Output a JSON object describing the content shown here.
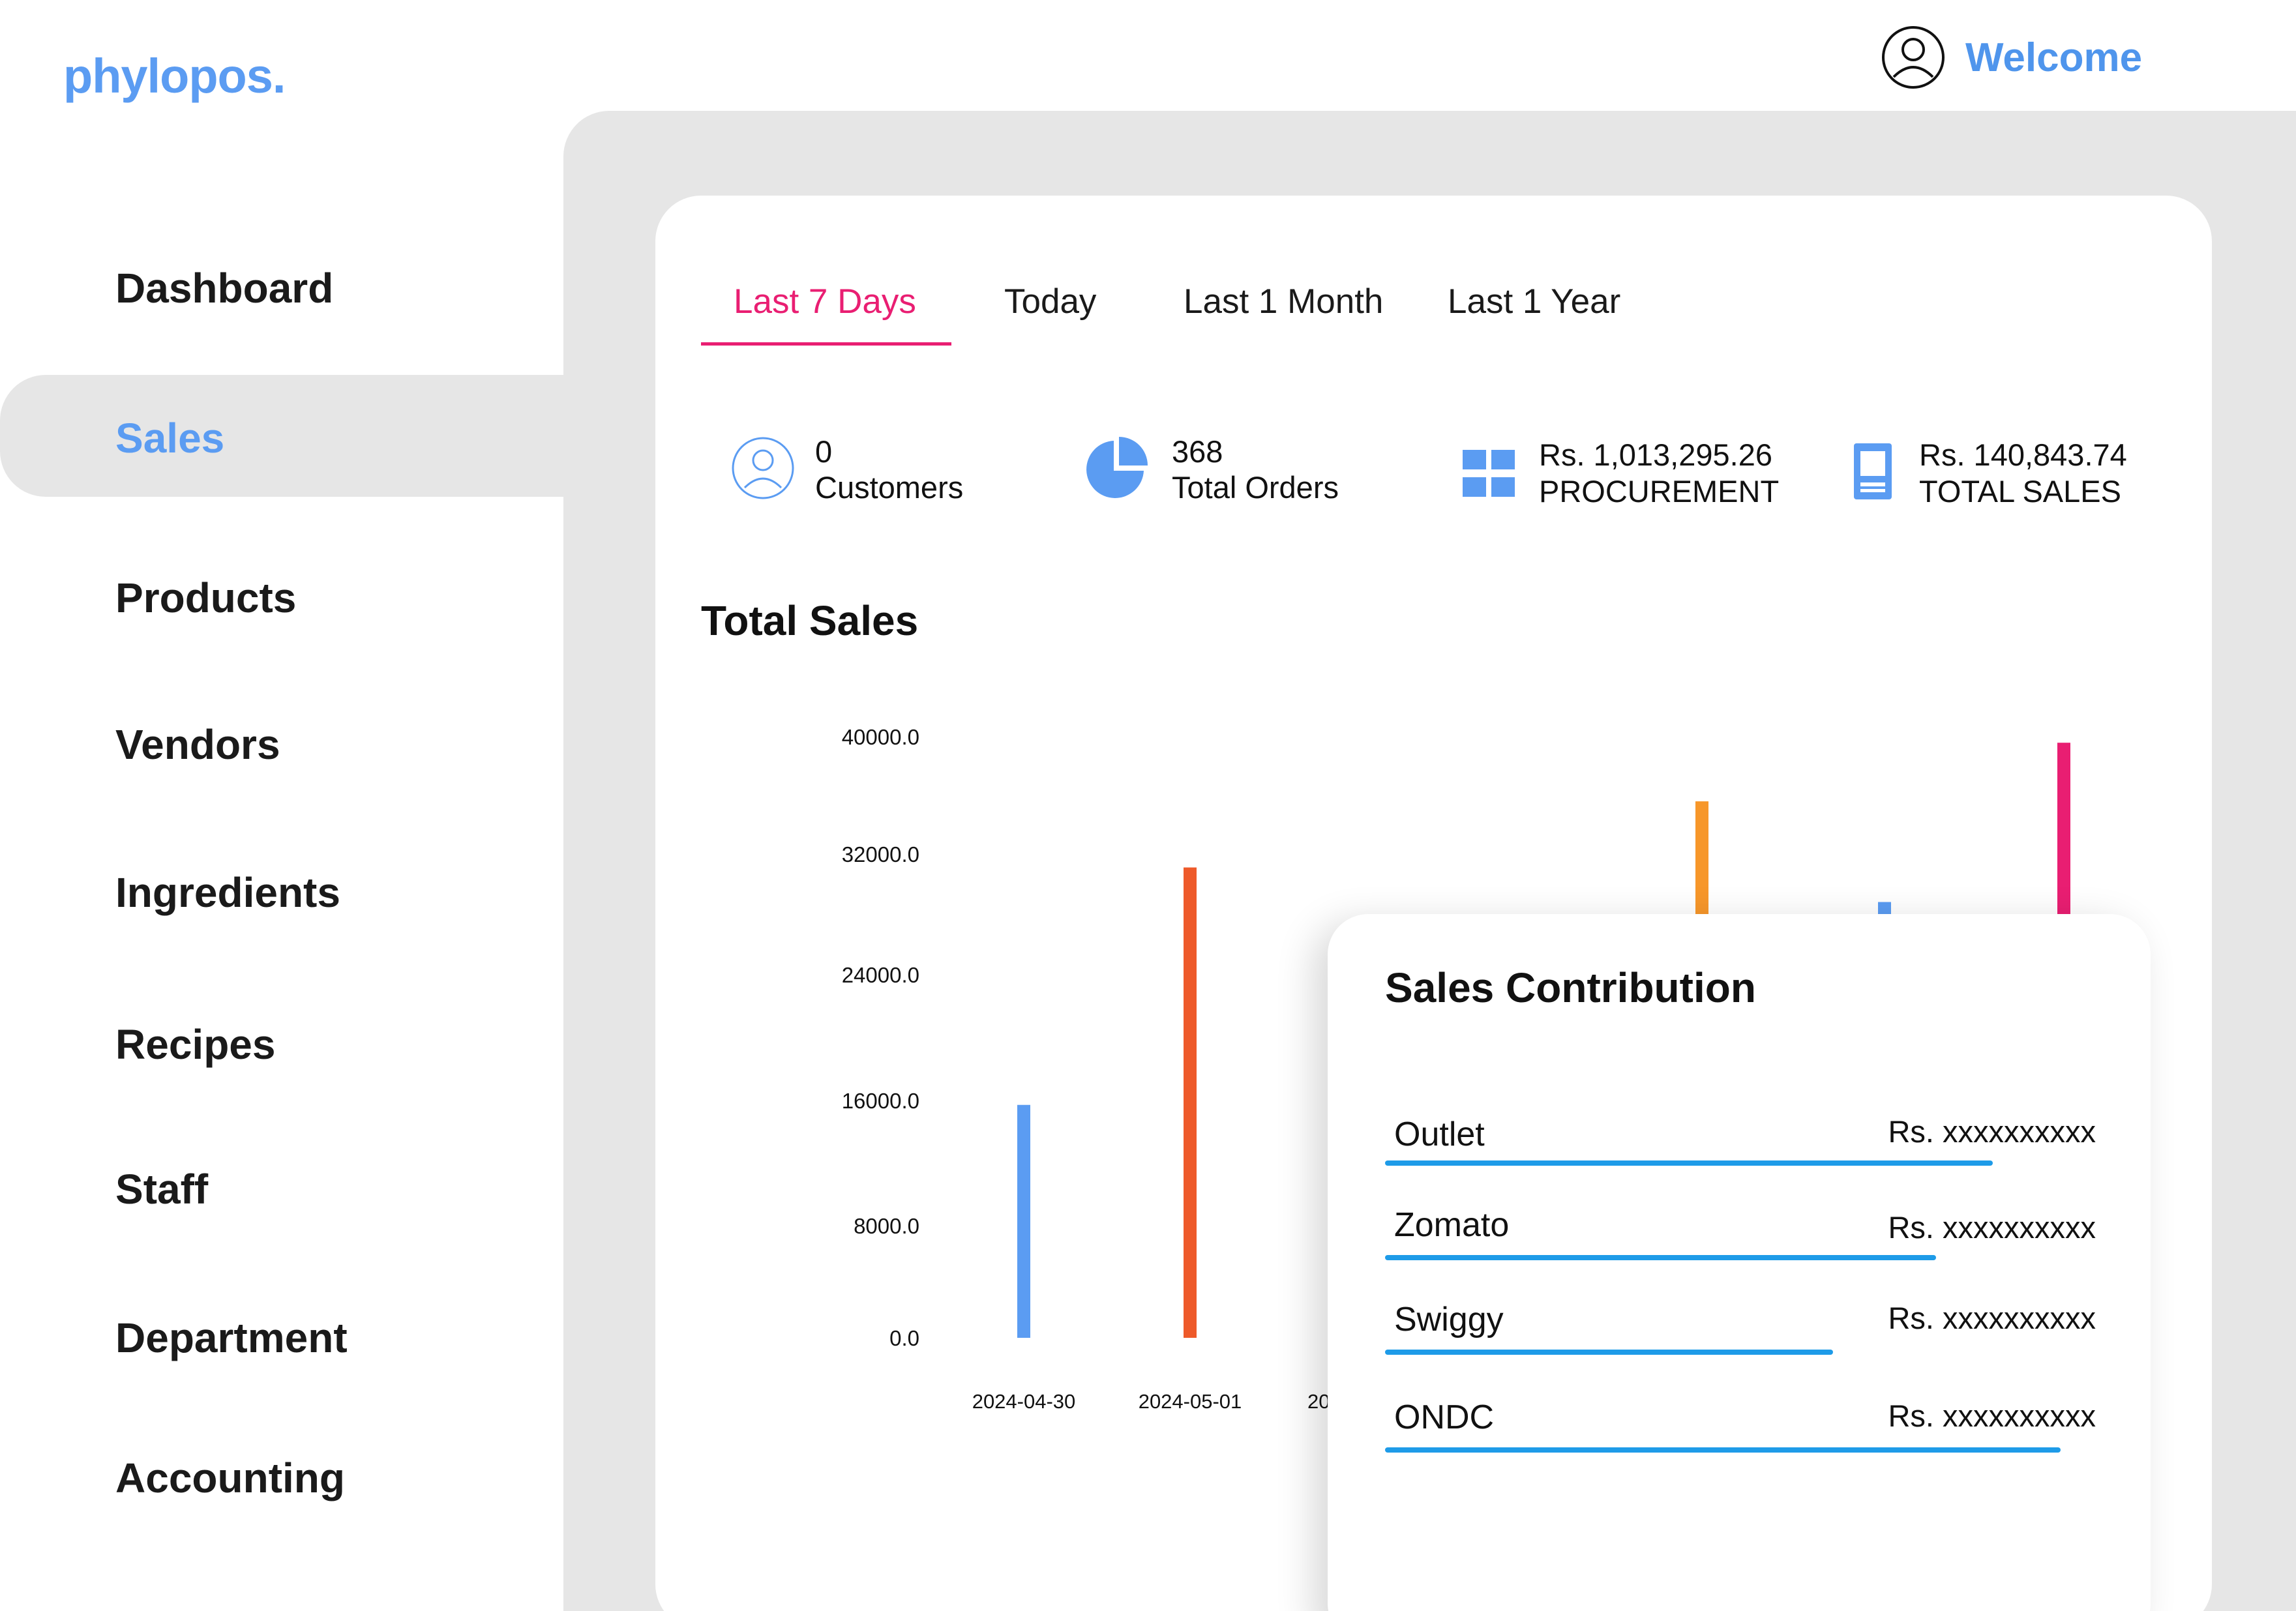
{
  "brand": {
    "logo": "phylopos."
  },
  "header": {
    "welcome_label": "Welcome",
    "user_icon": "user-circle-icon"
  },
  "sidebar": {
    "items": [
      {
        "label": "Dashboard",
        "active": false
      },
      {
        "label": "Sales",
        "active": true
      },
      {
        "label": "Products",
        "active": false
      },
      {
        "label": "Vendors",
        "active": false
      },
      {
        "label": "Ingredients",
        "active": false
      },
      {
        "label": "Recipes",
        "active": false
      },
      {
        "label": "Staff",
        "active": false
      },
      {
        "label": "Department",
        "active": false
      },
      {
        "label": "Accounting",
        "active": false
      }
    ]
  },
  "tabs": [
    {
      "label": "Last 7 Days",
      "active": true
    },
    {
      "label": "Today",
      "active": false
    },
    {
      "label": "Last 1 Month",
      "active": false
    },
    {
      "label": "Last 1 Year",
      "active": false
    }
  ],
  "stats": [
    {
      "value": "0",
      "label": "Customers",
      "icon": "customer-icon"
    },
    {
      "value": "368",
      "label": "Total Orders",
      "icon": "pie-chart-icon"
    },
    {
      "value": "Rs. 1,013,295.26",
      "label": "PROCUREMENT",
      "icon": "grid-icon"
    },
    {
      "value": "Rs. 140,843.74",
      "label": "TOTAL SALES",
      "icon": "receipt-icon"
    }
  ],
  "colors": {
    "accent": "#e91e72",
    "brand": "#5b9cf2",
    "contrib_bar": "#1e9be8"
  },
  "total_sales": {
    "title": "Total Sales"
  },
  "chart_data": {
    "type": "bar",
    "title": "",
    "xlabel": "",
    "ylabel": "",
    "ylim": [
      0,
      40000
    ],
    "y_ticks": [
      "40000.0",
      "32000.0",
      "24000.0",
      "16000.0",
      "8000.0",
      "0.0"
    ],
    "categories": [
      "2024-04-30",
      "2024-05-01",
      "20"
    ],
    "bars": [
      {
        "category": "2024-04-30",
        "value": 15500,
        "color": "#5b9cf2"
      },
      {
        "category": "2024-05-01",
        "value": 31300,
        "color": "#ee5a2a"
      },
      {
        "category": "",
        "value": 35700,
        "color": "#f7972a"
      },
      {
        "category": "",
        "value": 29000,
        "color": "#5b9cf2"
      },
      {
        "category": "",
        "value": 39600,
        "color": "#e91e72"
      }
    ]
  },
  "sales_contribution": {
    "title": "Sales Contribution",
    "rows": [
      {
        "name": "Outlet",
        "value": "Rs. xxxxxxxxxx",
        "fraction": 0.855
      },
      {
        "name": "Zomato",
        "value": "Rs. xxxxxxxxxx",
        "fraction": 0.775
      },
      {
        "name": "Swiggy",
        "value": "Rs. xxxxxxxxxx",
        "fraction": 0.63
      },
      {
        "name": "ONDC",
        "value": "Rs. xxxxxxxxxx",
        "fraction": 0.95
      }
    ]
  }
}
